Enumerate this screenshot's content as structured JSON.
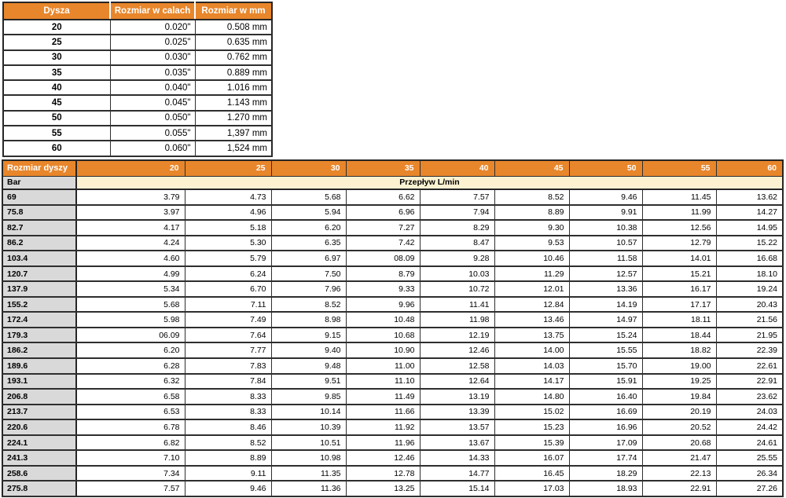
{
  "colors": {
    "header_orange": "#E8862B",
    "row_header_gray": "#D9D9D9",
    "unit_band_cream": "#FCF2D2",
    "grid_border": "#2E2E2E",
    "header_text": "#FFFFFF",
    "body_text": "#000000"
  },
  "nozzle_table": {
    "headers": [
      "Dysza",
      "Rozmiar w calach",
      "Rozmiar w mm"
    ],
    "rows": [
      [
        "20",
        "0.020\"",
        "0.508 mm"
      ],
      [
        "25",
        "0.025\"",
        "0.635 mm"
      ],
      [
        "30",
        "0.030\"",
        "0.762 mm"
      ],
      [
        "35",
        "0.035\"",
        "0.889 mm"
      ],
      [
        "40",
        "0.040\"",
        "1.016 mm"
      ],
      [
        "45",
        "0.045\"",
        "1.143 mm"
      ],
      [
        "50",
        "0.050\"",
        "1.270 mm"
      ],
      [
        "55",
        "0.055\"",
        "1,397 mm"
      ],
      [
        "60",
        "0.060\"",
        "1,524 mm"
      ]
    ]
  },
  "flow_table": {
    "corner_label": "Rozmiar dyszy",
    "row_header_label": "Bar",
    "span_label": "Przepływ L/min",
    "column_headers": [
      "20",
      "25",
      "30",
      "35",
      "40",
      "45",
      "50",
      "55",
      "60"
    ],
    "rows": [
      {
        "bar": "69",
        "values": [
          "3.79",
          "4.73",
          "5.68",
          "6.62",
          "7.57",
          "8.52",
          "9.46",
          "11.45",
          "13.62"
        ]
      },
      {
        "bar": "75.8",
        "values": [
          "3.97",
          "4.96",
          "5.94",
          "6.96",
          "7.94",
          "8.89",
          "9.91",
          "11.99",
          "14.27"
        ]
      },
      {
        "bar": "82.7",
        "values": [
          "4.17",
          "5.18",
          "6.20",
          "7.27",
          "8.29",
          "9.30",
          "10.38",
          "12.56",
          "14.95"
        ]
      },
      {
        "bar": "86.2",
        "values": [
          "4.24",
          "5.30",
          "6.35",
          "7.42",
          "8.47",
          "9.53",
          "10.57",
          "12.79",
          "15.22"
        ]
      },
      {
        "bar": "103.4",
        "values": [
          "4.60",
          "5.79",
          "6.97",
          "08.09",
          "9.28",
          "10.46",
          "11.58",
          "14.01",
          "16.68"
        ]
      },
      {
        "bar": "120.7",
        "values": [
          "4.99",
          "6.24",
          "7.50",
          "8.79",
          "10.03",
          "11.29",
          "12.57",
          "15.21",
          "18.10"
        ]
      },
      {
        "bar": "137.9",
        "values": [
          "5.34",
          "6.70",
          "7.96",
          "9.33",
          "10.72",
          "12.01",
          "13.36",
          "16.17",
          "19.24"
        ]
      },
      {
        "bar": "155.2",
        "values": [
          "5.68",
          "7.11",
          "8.52",
          "9.96",
          "11.41",
          "12.84",
          "14.19",
          "17.17",
          "20.43"
        ]
      },
      {
        "bar": "172.4",
        "values": [
          "5.98",
          "7.49",
          "8.98",
          "10.48",
          "11.98",
          "13.46",
          "14.97",
          "18.11",
          "21.56"
        ]
      },
      {
        "bar": "179.3",
        "values": [
          "06.09",
          "7.64",
          "9.15",
          "10.68",
          "12.19",
          "13.75",
          "15.24",
          "18.44",
          "21.95"
        ]
      },
      {
        "bar": "186.2",
        "values": [
          "6.20",
          "7.77",
          "9.40",
          "10.90",
          "12.46",
          "14.00",
          "15.55",
          "18.82",
          "22.39"
        ]
      },
      {
        "bar": "189.6",
        "values": [
          "6.28",
          "7.83",
          "9.48",
          "11.00",
          "12.58",
          "14.03",
          "15.70",
          "19.00",
          "22.61"
        ]
      },
      {
        "bar": "193.1",
        "values": [
          "6.32",
          "7.84",
          "9.51",
          "11.10",
          "12.64",
          "14.17",
          "15.91",
          "19.25",
          "22.91"
        ]
      },
      {
        "bar": "206.8",
        "values": [
          "6.58",
          "8.33",
          "9.85",
          "11.49",
          "13.19",
          "14.80",
          "16.40",
          "19.84",
          "23.62"
        ]
      },
      {
        "bar": "213.7",
        "values": [
          "6.53",
          "8.33",
          "10.14",
          "11.66",
          "13.39",
          "15.02",
          "16.69",
          "20.19",
          "24.03"
        ]
      },
      {
        "bar": "220.6",
        "values": [
          "6.78",
          "8.46",
          "10.39",
          "11.92",
          "13.57",
          "15.23",
          "16.96",
          "20.52",
          "24.42"
        ]
      },
      {
        "bar": "224.1",
        "values": [
          "6.82",
          "8.52",
          "10.51",
          "11.96",
          "13.67",
          "15.39",
          "17.09",
          "20.68",
          "24.61"
        ]
      },
      {
        "bar": "241.3",
        "values": [
          "7.10",
          "8.89",
          "10.98",
          "12.46",
          "14.33",
          "16.07",
          "17.74",
          "21.47",
          "25.55"
        ]
      },
      {
        "bar": "258.6",
        "values": [
          "7.34",
          "9.11",
          "11.35",
          "12.78",
          "14.77",
          "16.45",
          "18.29",
          "22.13",
          "26.34"
        ]
      },
      {
        "bar": "275.8",
        "values": [
          "7.57",
          "9.46",
          "11.36",
          "13.25",
          "15.14",
          "17.03",
          "18.93",
          "22.91",
          "27.26"
        ]
      }
    ]
  }
}
